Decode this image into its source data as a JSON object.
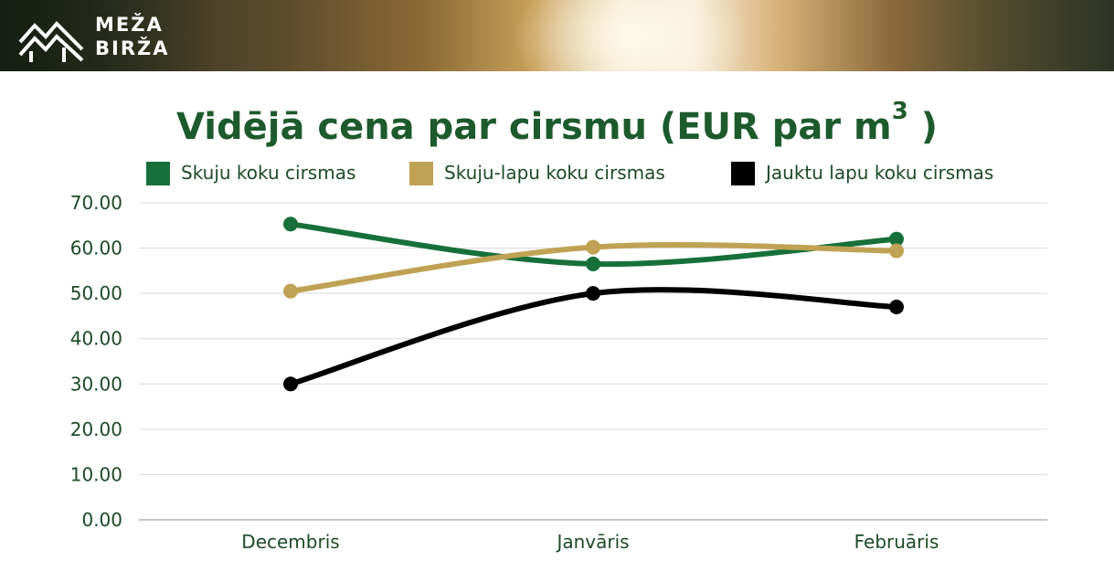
{
  "brand": {
    "line1": "MEŽA",
    "line2": "BIRŽA"
  },
  "title": {
    "main": "Vidējā cena par cirsmu (EUR par m",
    "sup": "3",
    "close": " )"
  },
  "chart_data": {
    "type": "line",
    "categories": [
      "Decembris",
      "Janvāris",
      "Februāris"
    ],
    "series": [
      {
        "name": "Skuju koku cirsmas",
        "color": "#17703a",
        "values": [
          65.3,
          56.5,
          62.0
        ]
      },
      {
        "name": "Skuju-lapu koku cirsmas",
        "color": "#bfa254",
        "values": [
          50.5,
          60.2,
          59.4
        ]
      },
      {
        "name": "Jauktu lapu koku cirsmas",
        "color": "#000000",
        "values": [
          30.0,
          50.0,
          47.0
        ]
      }
    ],
    "yticks": [
      "0.00",
      "10.00",
      "20.00",
      "30.00",
      "40.00",
      "50.00",
      "60.00",
      "70.00"
    ],
    "ylim": [
      0,
      70
    ],
    "grid": true,
    "legend": "top",
    "smooth": true
  }
}
